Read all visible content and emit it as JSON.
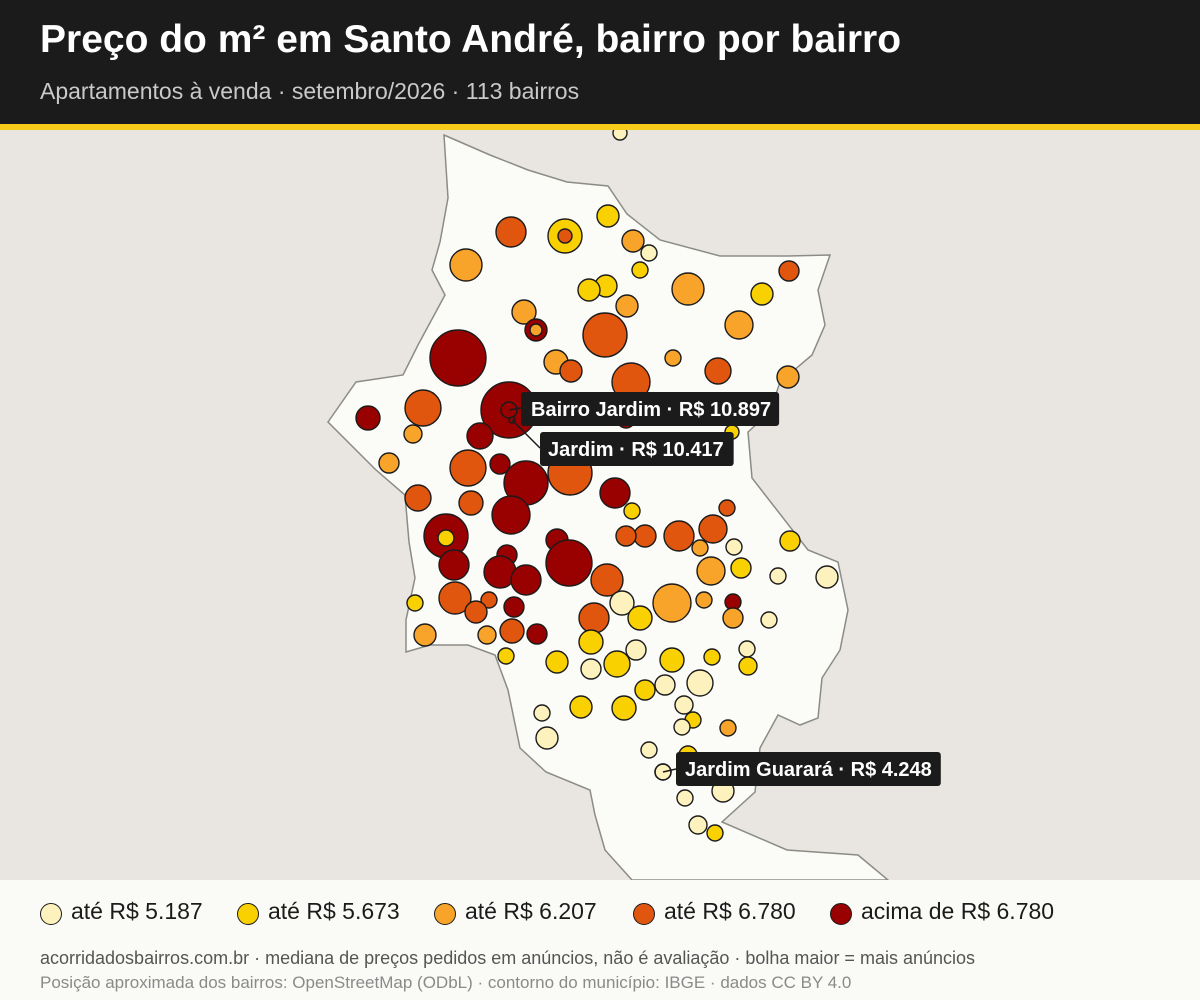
{
  "header": {
    "title": "Preço do m² em Santo André, bairro por bairro",
    "subtitle": "Apartamentos à venda · setembro/2026 · 113 bairros"
  },
  "colors": {
    "class_1": "#fdf1bd",
    "class_2": "#f9d100",
    "class_3": "#f8a42a",
    "class_4": "#e0560f",
    "class_5": "#990000",
    "header_bg": "#1b1b1b",
    "accent": "#f7cc1a",
    "land": "#fbfbf8",
    "background": "#e9e6e1"
  },
  "legend": {
    "items": [
      {
        "label": "até R$ 5.187",
        "class": 1
      },
      {
        "label": "até R$ 5.673",
        "class": 2
      },
      {
        "label": "até R$ 6.207",
        "class": 3
      },
      {
        "label": "até R$ 6.780",
        "class": 4
      },
      {
        "label": "acima de R$ 6.780",
        "class": 5
      }
    ]
  },
  "annotations": [
    {
      "label": "Bairro Jardim · R$ 10.897"
    },
    {
      "label": "Jardim · R$ 10.417"
    },
    {
      "label": "Jardim Guarará · R$ 4.248"
    }
  ],
  "footer": {
    "note": "acorridadosbairros.com.br · mediana de preços pedidos em anúncios, não é avaliação · bolha maior = mais anúncios",
    "attribution": "Posição aproximada dos bairros: OpenStreetMap (ODbL) · contorno do município: IBGE · dados CC BY 4.0"
  }
}
